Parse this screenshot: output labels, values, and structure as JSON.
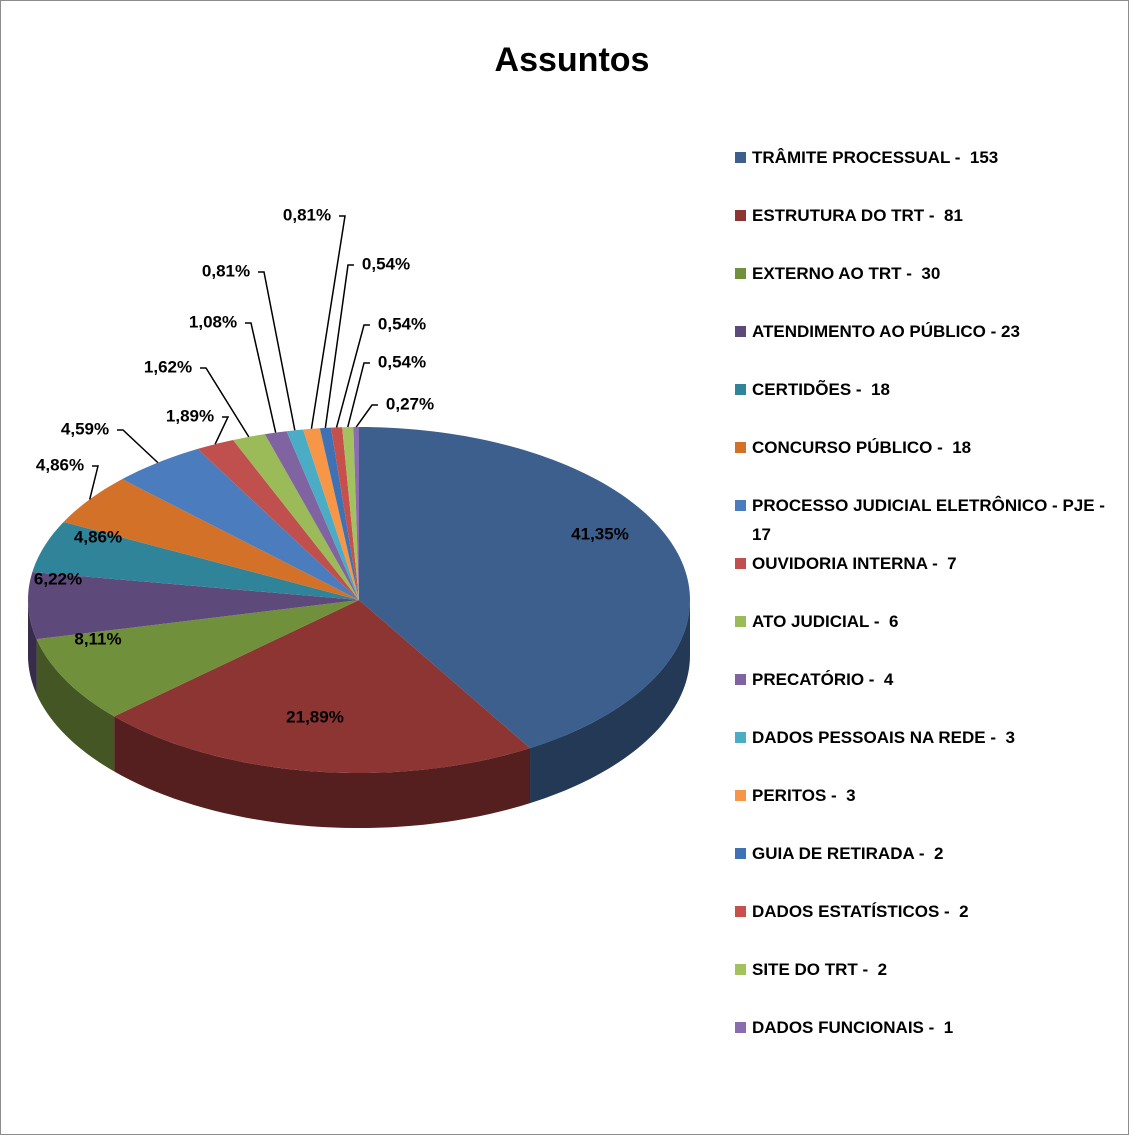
{
  "chart_data": {
    "type": "pie",
    "title": "Assuntos",
    "categories": [
      "TRÂMITE PROCESSUAL -  153",
      "ESTRUTURA DO TRT -  81",
      "EXTERNO AO TRT -  30",
      "ATENDIMENTO AO PÚBLICO - 23",
      "CERTIDÕES -  18",
      "CONCURSO PÚBLICO -  18",
      "PROCESSO JUDICIAL ELETRÔNICO - PJE -  17",
      "OUVIDORIA INTERNA -  7",
      "ATO JUDICIAL -  6",
      "PRECATÓRIO -  4",
      "DADOS PESSOAIS NA REDE -  3",
      "PERITOS -  3",
      "GUIA DE RETIRADA -  2",
      "DADOS ESTATÍSTICOS -  2",
      "SITE DO TRT -  2",
      "DADOS FUNCIONAIS -  1"
    ],
    "values": [
      41.35,
      21.89,
      8.11,
      6.22,
      4.86,
      4.86,
      4.59,
      1.89,
      1.62,
      1.08,
      0.81,
      0.81,
      0.54,
      0.54,
      0.54,
      0.27
    ],
    "value_labels": [
      "41,35%",
      "21,89%",
      "8,11%",
      "6,22%",
      "4,86%",
      "4,86%",
      "4,59%",
      "1,89%",
      "1,62%",
      "1,08%",
      "0,81%",
      "0,81%",
      "0,54%",
      "0,54%",
      "0,54%",
      "0,27%"
    ],
    "colors": [
      "#3C5F8E",
      "#8C3533",
      "#71903C",
      "#5D4A7A",
      "#2F8499",
      "#D27127",
      "#4A7CBE",
      "#C0504D",
      "#9BBB59",
      "#8064A2",
      "#4BACC6",
      "#F79646",
      "#3F72B5",
      "#C8504C",
      "#A3C25F",
      "#8A6CB0"
    ],
    "legend": "right"
  }
}
